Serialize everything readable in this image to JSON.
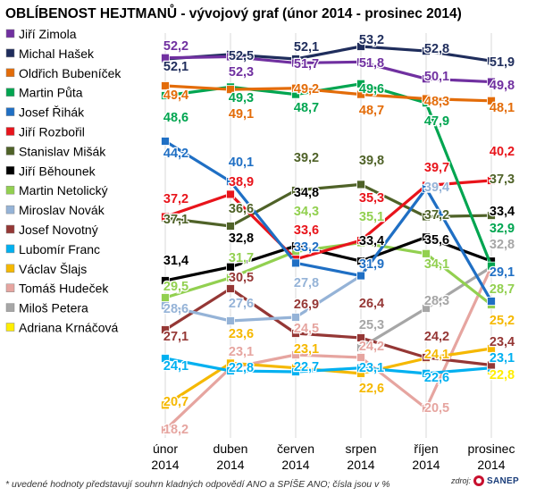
{
  "chart_data": {
    "type": "line",
    "title": "OBLÍBENOST HEJTMANŮ - vývojový graf (únor 2014 - prosinec 2014)",
    "categories": [
      [
        "únor",
        "2014"
      ],
      [
        "duben",
        "2014"
      ],
      [
        "červen",
        "2014"
      ],
      [
        "srpen",
        "2014"
      ],
      [
        "říjen",
        "2014"
      ],
      [
        "prosinec",
        "2014"
      ]
    ],
    "series": [
      {
        "name": "Jiří Zimola",
        "color": "#7030a0",
        "values": [
          52.2,
          52.3,
          51.7,
          51.8,
          50.1,
          49.8
        ]
      },
      {
        "name": "Michal Hašek",
        "color": "#1f2d5c",
        "values": [
          52.1,
          52.5,
          52.1,
          53.2,
          52.8,
          51.9
        ]
      },
      {
        "name": "Oldřich Bubeníček",
        "color": "#e36c09",
        "values": [
          49.4,
          49.1,
          49.2,
          48.7,
          48.3,
          48.1
        ]
      },
      {
        "name": "Martin Půta",
        "color": "#00a550",
        "values": [
          48.6,
          49.3,
          48.7,
          49.6,
          47.9,
          32.9
        ]
      },
      {
        "name": "Josef Řihák",
        "color": "#1f6fc4",
        "values": [
          44.2,
          40.1,
          33.2,
          31.9,
          39.4,
          29.1
        ]
      },
      {
        "name": "Jiří Rozbořil",
        "color": "#e8141b",
        "values": [
          37.2,
          38.9,
          33.6,
          35.3,
          39.7,
          40.2
        ]
      },
      {
        "name": "Stanislav Mišák",
        "color": "#4f6228",
        "values": [
          37.1,
          36.6,
          39.2,
          39.8,
          37.2,
          37.3
        ]
      },
      {
        "name": "Jiří Běhounek",
        "color": "#000000",
        "values": [
          31.4,
          32.8,
          34.8,
          33.4,
          35.6,
          33.4
        ]
      },
      {
        "name": "Martin Netolický",
        "color": "#92d050",
        "values": [
          29.5,
          31.7,
          34.3,
          35.1,
          34.1,
          28.7
        ]
      },
      {
        "name": "Miroslav Novák",
        "color": "#95b3d7",
        "values": [
          28.6,
          27.6,
          27.8,
          31.9,
          39.4,
          29.1
        ]
      },
      {
        "name": "Josef Novotný",
        "color": "#953735",
        "values": [
          27.1,
          30.5,
          26.9,
          26.4,
          24.2,
          23.4
        ]
      },
      {
        "name": "Lubomír Franc",
        "color": "#00b0f0",
        "values": [
          24.1,
          22.8,
          22.7,
          23.1,
          22.6,
          23.1
        ]
      },
      {
        "name": "Václav Šlajs",
        "color": "#f5b800",
        "values": [
          20.7,
          23.6,
          23.1,
          22.6,
          24.1,
          25.2
        ]
      },
      {
        "name": "Tomáš Hudeček",
        "color": "#e6a5a0",
        "values": [
          18.2,
          23.1,
          24.5,
          24.2,
          20.5,
          32.8
        ]
      },
      {
        "name": "Miloš Petera",
        "color": "#a6a6a6",
        "values": [
          null,
          null,
          null,
          25.3,
          28.3,
          32.8
        ]
      },
      {
        "name": "Adriana Krnáčová",
        "color": "#ffee00",
        "values": [
          null,
          null,
          null,
          null,
          null,
          22.8
        ]
      }
    ],
    "labels": [
      {
        "text": "52,2",
        "color": "#7030a0",
        "col": 0
      },
      {
        "text": "52,1",
        "color": "#1f2d5c",
        "col": 0
      },
      {
        "text": "49,4",
        "color": "#e36c09",
        "col": 0
      },
      {
        "text": "48,6",
        "color": "#00a550",
        "col": 0
      },
      {
        "text": "44,2",
        "color": "#1f6fc4",
        "col": 0
      },
      {
        "text": "37,2",
        "color": "#e8141b",
        "col": 0
      },
      {
        "text": "37,1",
        "color": "#4f6228",
        "col": 0
      },
      {
        "text": "31,4",
        "color": "#000000",
        "col": 0
      },
      {
        "text": "29,5",
        "color": "#92d050",
        "col": 0
      },
      {
        "text": "28,6",
        "color": "#95b3d7",
        "col": 0
      },
      {
        "text": "27,1",
        "color": "#953735",
        "col": 0
      },
      {
        "text": "24,1",
        "color": "#00b0f0",
        "col": 0
      },
      {
        "text": "20,7",
        "color": "#f5b800",
        "col": 0
      },
      {
        "text": "18,2",
        "color": "#e6a5a0",
        "col": 0
      },
      {
        "text": "52,5",
        "color": "#1f2d5c",
        "col": 1
      },
      {
        "text": "52,3",
        "color": "#7030a0",
        "col": 1
      },
      {
        "text": "49,3",
        "color": "#00a550",
        "col": 1
      },
      {
        "text": "49,1",
        "color": "#e36c09",
        "col": 1
      },
      {
        "text": "40,1",
        "color": "#1f6fc4",
        "col": 1
      },
      {
        "text": "38,9",
        "color": "#e8141b",
        "col": 1
      },
      {
        "text": "36,6",
        "color": "#4f6228",
        "col": 1
      },
      {
        "text": "32,8",
        "color": "#000000",
        "col": 1
      },
      {
        "text": "31,7",
        "color": "#92d050",
        "col": 1
      },
      {
        "text": "30,5",
        "color": "#953735",
        "col": 1
      },
      {
        "text": "27,6",
        "color": "#95b3d7",
        "col": 1
      },
      {
        "text": "23,6",
        "color": "#f5b800",
        "col": 1
      },
      {
        "text": "23,1",
        "color": "#e6a5a0",
        "col": 1
      },
      {
        "text": "22,8",
        "color": "#00b0f0",
        "col": 1
      },
      {
        "text": "52,1",
        "color": "#1f2d5c",
        "col": 2
      },
      {
        "text": "51,7",
        "color": "#7030a0",
        "col": 2
      },
      {
        "text": "49,2",
        "color": "#e36c09",
        "col": 2
      },
      {
        "text": "48,7",
        "color": "#00a550",
        "col": 2
      },
      {
        "text": "39,2",
        "color": "#4f6228",
        "col": 2
      },
      {
        "text": "34,8",
        "color": "#000000",
        "col": 2
      },
      {
        "text": "34,3",
        "color": "#92d050",
        "col": 2
      },
      {
        "text": "33,6",
        "color": "#e8141b",
        "col": 2
      },
      {
        "text": "33,2",
        "color": "#1f6fc4",
        "col": 2
      },
      {
        "text": "27,8",
        "color": "#95b3d7",
        "col": 2
      },
      {
        "text": "26,9",
        "color": "#953735",
        "col": 2
      },
      {
        "text": "24,5",
        "color": "#e6a5a0",
        "col": 2
      },
      {
        "text": "23,1",
        "color": "#f5b800",
        "col": 2
      },
      {
        "text": "22,7",
        "color": "#00b0f0",
        "col": 2
      },
      {
        "text": "53,2",
        "color": "#1f2d5c",
        "col": 3
      },
      {
        "text": "51,8",
        "color": "#7030a0",
        "col": 3
      },
      {
        "text": "49,6",
        "color": "#00a550",
        "col": 3
      },
      {
        "text": "48,7",
        "color": "#e36c09",
        "col": 3
      },
      {
        "text": "39,8",
        "color": "#4f6228",
        "col": 3
      },
      {
        "text": "35,3",
        "color": "#e8141b",
        "col": 3
      },
      {
        "text": "35,1",
        "color": "#92d050",
        "col": 3
      },
      {
        "text": "33,4",
        "color": "#000000",
        "col": 3
      },
      {
        "text": "31,9",
        "color": "#1f6fc4",
        "col": 3
      },
      {
        "text": "26,4",
        "color": "#953735",
        "col": 3
      },
      {
        "text": "25,3",
        "color": "#a6a6a6",
        "col": 3
      },
      {
        "text": "24,2",
        "color": "#e6a5a0",
        "col": 3
      },
      {
        "text": "23,1",
        "color": "#00b0f0",
        "col": 3
      },
      {
        "text": "22,6",
        "color": "#f5b800",
        "col": 3
      },
      {
        "text": "52,8",
        "color": "#1f2d5c",
        "col": 4
      },
      {
        "text": "50,1",
        "color": "#7030a0",
        "col": 4
      },
      {
        "text": "48,3",
        "color": "#e36c09",
        "col": 4
      },
      {
        "text": "47,9",
        "color": "#00a550",
        "col": 4
      },
      {
        "text": "39,7",
        "color": "#e8141b",
        "col": 4
      },
      {
        "text": "39,4",
        "color": "#95b3d7",
        "col": 4
      },
      {
        "text": "37,2",
        "color": "#4f6228",
        "col": 4
      },
      {
        "text": "35,6",
        "color": "#000000",
        "col": 4
      },
      {
        "text": "34,1",
        "color": "#92d050",
        "col": 4
      },
      {
        "text": "28,3",
        "color": "#a6a6a6",
        "col": 4
      },
      {
        "text": "24,2",
        "color": "#953735",
        "col": 4
      },
      {
        "text": "24,1",
        "color": "#f5b800",
        "col": 4
      },
      {
        "text": "22,6",
        "color": "#00b0f0",
        "col": 4
      },
      {
        "text": "20,5",
        "color": "#e6a5a0",
        "col": 4
      },
      {
        "text": "51,9",
        "color": "#1f2d5c",
        "col": 5
      },
      {
        "text": "49,8",
        "color": "#7030a0",
        "col": 5
      },
      {
        "text": "48,1",
        "color": "#e36c09",
        "col": 5
      },
      {
        "text": "40,2",
        "color": "#e8141b",
        "col": 5
      },
      {
        "text": "37,3",
        "color": "#4f6228",
        "col": 5
      },
      {
        "text": "33,4",
        "color": "#000000",
        "col": 5
      },
      {
        "text": "32,9",
        "color": "#00a550",
        "col": 5
      },
      {
        "text": "32,8",
        "color": "#a6a6a6",
        "col": 5
      },
      {
        "text": "29,1",
        "color": "#1f6fc4",
        "col": 5
      },
      {
        "text": "28,7",
        "color": "#92d050",
        "col": 5
      },
      {
        "text": "25,2",
        "color": "#f5b800",
        "col": 5
      },
      {
        "text": "23,4",
        "color": "#953735",
        "col": 5
      },
      {
        "text": "23,1",
        "color": "#00b0f0",
        "col": 5
      },
      {
        "text": "22,8",
        "color": "#ffee00",
        "col": 5
      }
    ]
  },
  "footnote": "* uvedené hodnoty představují souhrn kladných odpovědí ANO a SPÍŠE ANO; čísla jsou v %",
  "source": {
    "label": "zdroj:",
    "name": "SANEP"
  }
}
